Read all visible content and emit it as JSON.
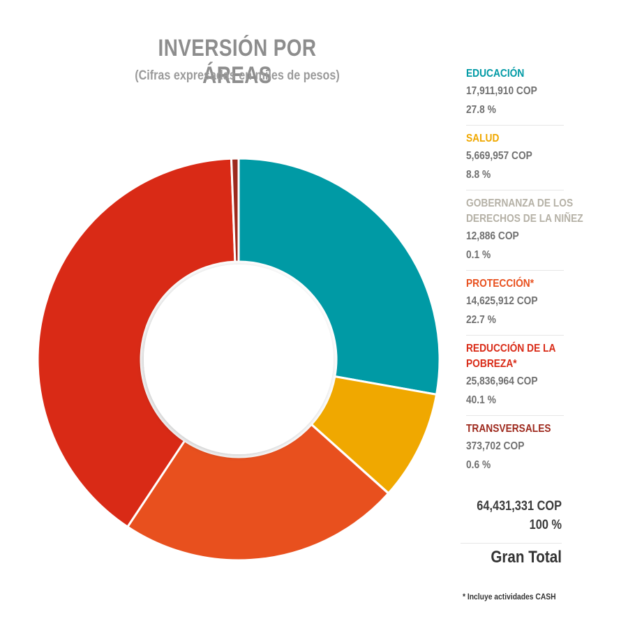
{
  "chart_data": {
    "type": "pie",
    "variant": "donut",
    "title": "INVERSIÓN POR ÁREAS",
    "subtitle": "(Cifras expresadas en miles de pesos)",
    "series": [
      {
        "name": "EDUCACIÓN",
        "name_lines": [
          "EDUCACIÓN"
        ],
        "value": 17911910,
        "value_label": "17,911,910 COP",
        "percent_label": "27.8 %",
        "color": "#009aa5"
      },
      {
        "name": "SALUD",
        "name_lines": [
          "SALUD"
        ],
        "value": 5669957,
        "value_label": "5,669,957 COP",
        "percent_label": "8.8 %",
        "color": "#f0a800"
      },
      {
        "name": "GOBERNANZA DE LOS DERECHOS DE LA NIÑEZ",
        "name_lines": [
          "GOBERNANZA DE LOS",
          "DERECHOS DE LA NIÑEZ"
        ],
        "value": 12886,
        "value_label": "12,886 COP",
        "percent_label": "0.1 %",
        "color": "#b5b1a6"
      },
      {
        "name": "PROTECCIÓN*",
        "name_lines": [
          "PROTECCIÓN*"
        ],
        "value": 14625912,
        "value_label": "14,625,912 COP",
        "percent_label": "22.7 %",
        "color": "#e8501e"
      },
      {
        "name": "REDUCCIÓN DE LA POBREZA*",
        "name_lines": [
          "REDUCCIÓN DE LA",
          "POBREZA*"
        ],
        "value": 25836964,
        "value_label": "25,836,964 COP",
        "percent_label": "40.1 %",
        "color": "#d92a16"
      },
      {
        "name": "TRANSVERSALES",
        "name_lines": [
          "TRANSVERSALES"
        ],
        "value": 373702,
        "value_label": "373,702 COP",
        "percent_label": "0.6 %",
        "color": "#9e2a1e"
      }
    ],
    "total": {
      "value": 64431331,
      "value_label": "64,431,331 COP",
      "percent_label": "100 %",
      "label": "Gran Total"
    },
    "legend_position": "right",
    "footnote": "* Incluye actividades CASH"
  }
}
